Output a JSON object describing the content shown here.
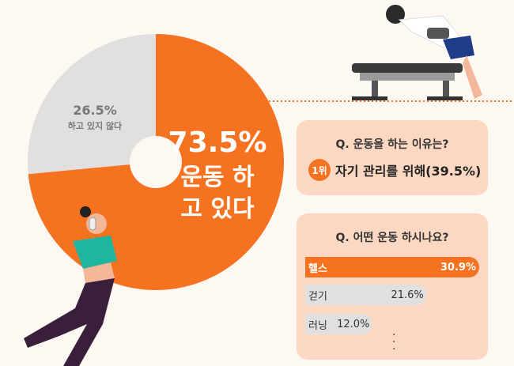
{
  "chart_data": [
    {
      "type": "pie",
      "donut": true,
      "slices": [
        {
          "label": "운동 하고 있다",
          "value": 73.5,
          "value_label": "73.5%",
          "color": "#f47220"
        },
        {
          "label": "하고 있지 않다",
          "value": 26.5,
          "value_label": "26.5%",
          "color": "#e2e0de"
        }
      ]
    },
    {
      "type": "bar",
      "orientation": "horizontal",
      "title": "Q. 어떤 운동 하시나요?",
      "categories": [
        "헬스",
        "걷기",
        "러닝"
      ],
      "values": [
        30.9,
        21.6,
        12.0
      ],
      "value_labels": [
        "30.9%",
        "21.6%",
        "12.0%"
      ],
      "colors": [
        "#f47220",
        "#e2e0de",
        "#e2e0de"
      ]
    }
  ],
  "reason": {
    "question": "Q. 운동을 하는 이유는?",
    "rank": "1위",
    "answer": "자기 관리를 위해(39.5%)"
  },
  "accent": "#f47220"
}
